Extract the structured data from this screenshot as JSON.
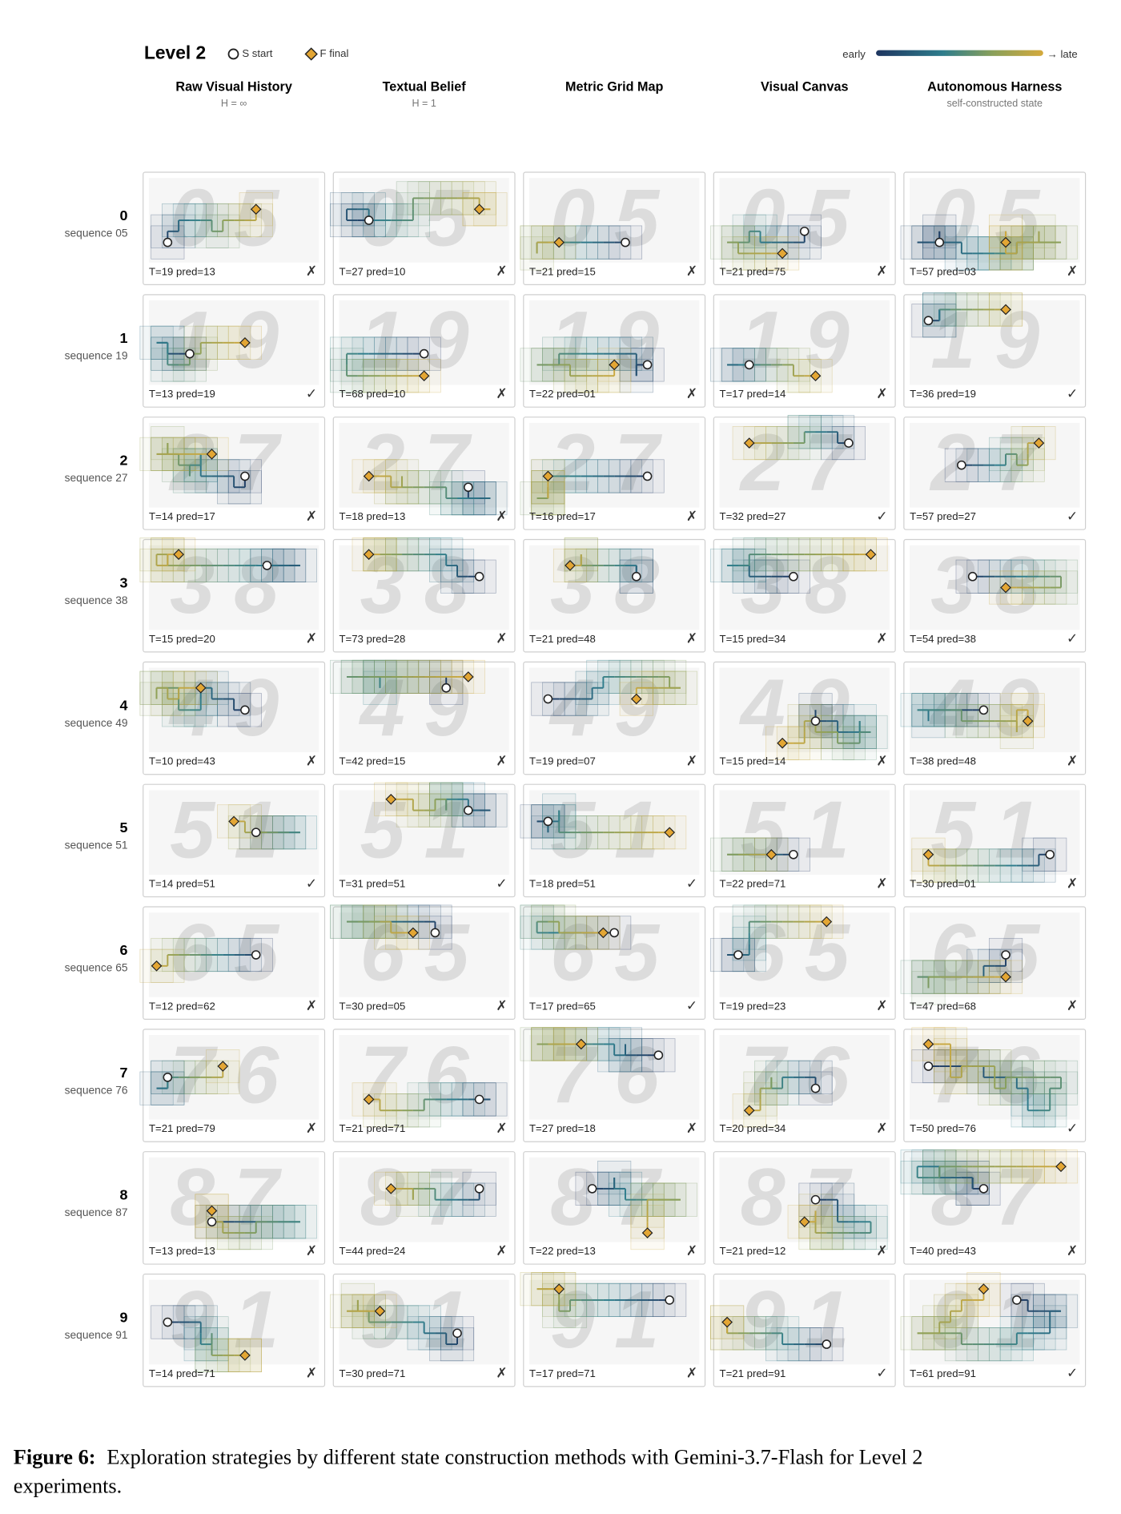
{
  "header": {
    "title": "Level 2",
    "legend_start": "S start",
    "legend_final": "F final",
    "scale_early": "early",
    "scale_late": "→ late"
  },
  "columns": [
    {
      "title": "Raw Visual History",
      "subtitle": "H = ∞"
    },
    {
      "title": "Textual Belief",
      "subtitle": "H = 1"
    },
    {
      "title": "Metric Grid Map",
      "subtitle": ""
    },
    {
      "title": "Visual Canvas",
      "subtitle": ""
    },
    {
      "title": "Autonomous Harness",
      "subtitle": "self-constructed state"
    }
  ],
  "rows": [
    {
      "label": "0",
      "sequence": "sequence 05",
      "digits": "05",
      "cells": [
        {
          "caption": "T=19 pred=13",
          "mark": "✗"
        },
        {
          "caption": "T=27 pred=10",
          "mark": "✗"
        },
        {
          "caption": "T=21 pred=15",
          "mark": "✗"
        },
        {
          "caption": "T=21 pred=75",
          "mark": "✗"
        },
        {
          "caption": "T=57 pred=03",
          "mark": "✗"
        }
      ]
    },
    {
      "label": "1",
      "sequence": "sequence 19",
      "digits": "19",
      "cells": [
        {
          "caption": "T=13 pred=19",
          "mark": "✓"
        },
        {
          "caption": "T=68 pred=10",
          "mark": "✗"
        },
        {
          "caption": "T=22 pred=01",
          "mark": "✗"
        },
        {
          "caption": "T=17 pred=14",
          "mark": "✗"
        },
        {
          "caption": "T=36 pred=19",
          "mark": "✓"
        }
      ]
    },
    {
      "label": "2",
      "sequence": "sequence 27",
      "digits": "27",
      "cells": [
        {
          "caption": "T=14 pred=17",
          "mark": "✗"
        },
        {
          "caption": "T=18 pred=13",
          "mark": "✗"
        },
        {
          "caption": "T=16 pred=17",
          "mark": "✗"
        },
        {
          "caption": "T=32 pred=27",
          "mark": "✓"
        },
        {
          "caption": "T=57 pred=27",
          "mark": "✓"
        }
      ]
    },
    {
      "label": "3",
      "sequence": "sequence 38",
      "digits": "38",
      "cells": [
        {
          "caption": "T=15 pred=20",
          "mark": "✗"
        },
        {
          "caption": "T=73 pred=28",
          "mark": "✗"
        },
        {
          "caption": "T=21 pred=48",
          "mark": "✗"
        },
        {
          "caption": "T=15 pred=34",
          "mark": "✗"
        },
        {
          "caption": "T=54 pred=38",
          "mark": "✓"
        }
      ]
    },
    {
      "label": "4",
      "sequence": "sequence 49",
      "digits": "49",
      "cells": [
        {
          "caption": "T=10 pred=43",
          "mark": "✗"
        },
        {
          "caption": "T=42 pred=15",
          "mark": "✗"
        },
        {
          "caption": "T=19 pred=07",
          "mark": "✗"
        },
        {
          "caption": "T=15 pred=14",
          "mark": "✗"
        },
        {
          "caption": "T=38 pred=48",
          "mark": "✗"
        }
      ]
    },
    {
      "label": "5",
      "sequence": "sequence 51",
      "digits": "51",
      "cells": [
        {
          "caption": "T=14 pred=51",
          "mark": "✓"
        },
        {
          "caption": "T=31 pred=51",
          "mark": "✓"
        },
        {
          "caption": "T=18 pred=51",
          "mark": "✓"
        },
        {
          "caption": "T=22 pred=71",
          "mark": "✗"
        },
        {
          "caption": "T=30 pred=01",
          "mark": "✗"
        }
      ]
    },
    {
      "label": "6",
      "sequence": "sequence 65",
      "digits": "65",
      "cells": [
        {
          "caption": "T=12 pred=62",
          "mark": "✗"
        },
        {
          "caption": "T=30 pred=05",
          "mark": "✗"
        },
        {
          "caption": "T=17 pred=65",
          "mark": "✓"
        },
        {
          "caption": "T=19 pred=23",
          "mark": "✗"
        },
        {
          "caption": "T=47 pred=68",
          "mark": "✗"
        }
      ]
    },
    {
      "label": "7",
      "sequence": "sequence 76",
      "digits": "76",
      "cells": [
        {
          "caption": "T=21 pred=79",
          "mark": "✗"
        },
        {
          "caption": "T=21 pred=71",
          "mark": "✗"
        },
        {
          "caption": "T=27 pred=18",
          "mark": "✗"
        },
        {
          "caption": "T=20 pred=34",
          "mark": "✗"
        },
        {
          "caption": "T=50 pred=76",
          "mark": "✓"
        }
      ]
    },
    {
      "label": "8",
      "sequence": "sequence 87",
      "digits": "87",
      "cells": [
        {
          "caption": "T=13 pred=13",
          "mark": "✗"
        },
        {
          "caption": "T=44 pred=24",
          "mark": "✗"
        },
        {
          "caption": "T=22 pred=13",
          "mark": "✗"
        },
        {
          "caption": "T=21 pred=12",
          "mark": "✗"
        },
        {
          "caption": "T=40 pred=43",
          "mark": "✗"
        }
      ]
    },
    {
      "label": "9",
      "sequence": "sequence 91",
      "digits": "91",
      "cells": [
        {
          "caption": "T=14 pred=71",
          "mark": "✗"
        },
        {
          "caption": "T=30 pred=71",
          "mark": "✗"
        },
        {
          "caption": "T=17 pred=71",
          "mark": "✗"
        },
        {
          "caption": "T=21 pred=91",
          "mark": "✓"
        },
        {
          "caption": "T=61 pred=91",
          "mark": "✓"
        }
      ]
    }
  ],
  "caption": {
    "label": "Figure 6:",
    "lines": [
      "Exploration strategies by different state construction methods with Gemini-3.7-Flash for Level 2",
      "experiments."
    ]
  }
}
